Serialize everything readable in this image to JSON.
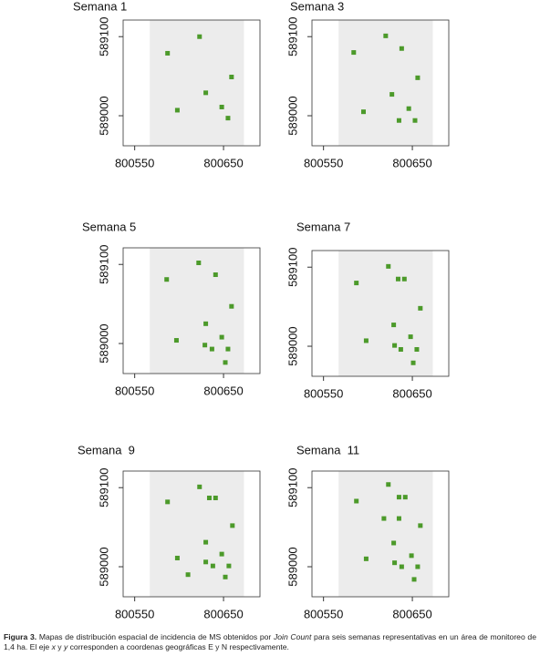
{
  "chart_data": [
    {
      "type": "scatter",
      "title": "Semana 1",
      "color": "#4c9a2a",
      "x": [
        800587,
        800623,
        800630,
        800598,
        800648,
        800659,
        800655
      ],
      "values": [
        589079,
        589100,
        589029,
        589007,
        589011,
        589049,
        588997
      ],
      "xlim": [
        800537,
        800691
      ],
      "ylim": [
        588962,
        589121
      ],
      "xticks": [
        800550,
        800650
      ],
      "yticks": [
        589000,
        589100
      ]
    },
    {
      "type": "scatter",
      "title": "Semana 3",
      "color": "#4c9a2a",
      "x": [
        800584,
        800620,
        800638,
        800656,
        800627,
        800595,
        800646,
        800635,
        800653
      ],
      "values": [
        589080,
        589101,
        589085,
        589048,
        589027,
        589005,
        589009,
        588994,
        588994
      ],
      "xlim": [
        800537,
        800691
      ],
      "ylim": [
        588962,
        589121
      ],
      "xticks": [
        800550,
        800650
      ],
      "yticks": [
        589000,
        589100
      ]
    },
    {
      "type": "scatter",
      "title": "Semana 5",
      "color": "#4c9a2a",
      "x": [
        800586,
        800622,
        800641,
        800659,
        800630,
        800597,
        800648,
        800629,
        800637,
        800655,
        800652
      ],
      "values": [
        589081,
        589102,
        589087,
        589047,
        589025,
        589004,
        589008,
        588998,
        588993,
        588993,
        588976
      ],
      "xlim": [
        800537,
        800691
      ],
      "ylim": [
        588962,
        589121
      ],
      "xticks": [
        800550,
        800650
      ],
      "yticks": [
        589000,
        589100
      ]
    },
    {
      "type": "scatter",
      "title": "Semana 7",
      "color": "#4c9a2a",
      "x": [
        800587,
        800623,
        800634,
        800641,
        800659,
        800629,
        800598,
        800648,
        800630,
        800637,
        800655,
        800651
      ],
      "values": [
        589080,
        589101,
        589085,
        589085,
        589048,
        589027,
        589007,
        589012,
        589001,
        588996,
        588996,
        588979
      ],
      "xlim": [
        800537,
        800691
      ],
      "ylim": [
        588962,
        589121
      ],
      "xticks": [
        800550,
        800650
      ],
      "yticks": [
        589000,
        589100
      ]
    },
    {
      "type": "scatter",
      "title": "Semana  9",
      "color": "#4c9a2a",
      "x": [
        800587,
        800623,
        800634,
        800641,
        800660,
        800630,
        800598,
        800648,
        800630,
        800638,
        800656,
        800610,
        800652
      ],
      "values": [
        589082,
        589101,
        589087,
        589087,
        589052,
        589031,
        589011,
        589016,
        589006,
        589001,
        589001,
        588990,
        588987
      ],
      "xlim": [
        800537,
        800691
      ],
      "ylim": [
        588962,
        589121
      ],
      "xticks": [
        800550,
        800650
      ],
      "yticks": [
        589000,
        589100
      ]
    },
    {
      "type": "scatter",
      "title": "Semana  11",
      "color": "#4c9a2a",
      "x": [
        800587,
        800623,
        800635,
        800642,
        800618,
        800635,
        800659,
        800629,
        800598,
        800649,
        800630,
        800638,
        800656,
        800652
      ],
      "values": [
        589083,
        589104,
        589088,
        589088,
        589061,
        589061,
        589052,
        589030,
        589010,
        589014,
        589005,
        589000,
        589000,
        588984
      ],
      "xlim": [
        800537,
        800691
      ],
      "ylim": [
        588962,
        589121
      ],
      "xticks": [
        800550,
        800650
      ],
      "yticks": [
        589000,
        589100
      ]
    }
  ],
  "caption": {
    "label": "Figura 3.",
    "parts": [
      "Mapas de distribución espacial de incidencia de MS obtenidos por ",
      "Join Count",
      " para seis semanas representativas en un área de monitoreo de 1,4 ha. El eje ",
      "x",
      " y ",
      "y",
      " corresponden a coordenas geográficas E y N respectivamente."
    ]
  }
}
